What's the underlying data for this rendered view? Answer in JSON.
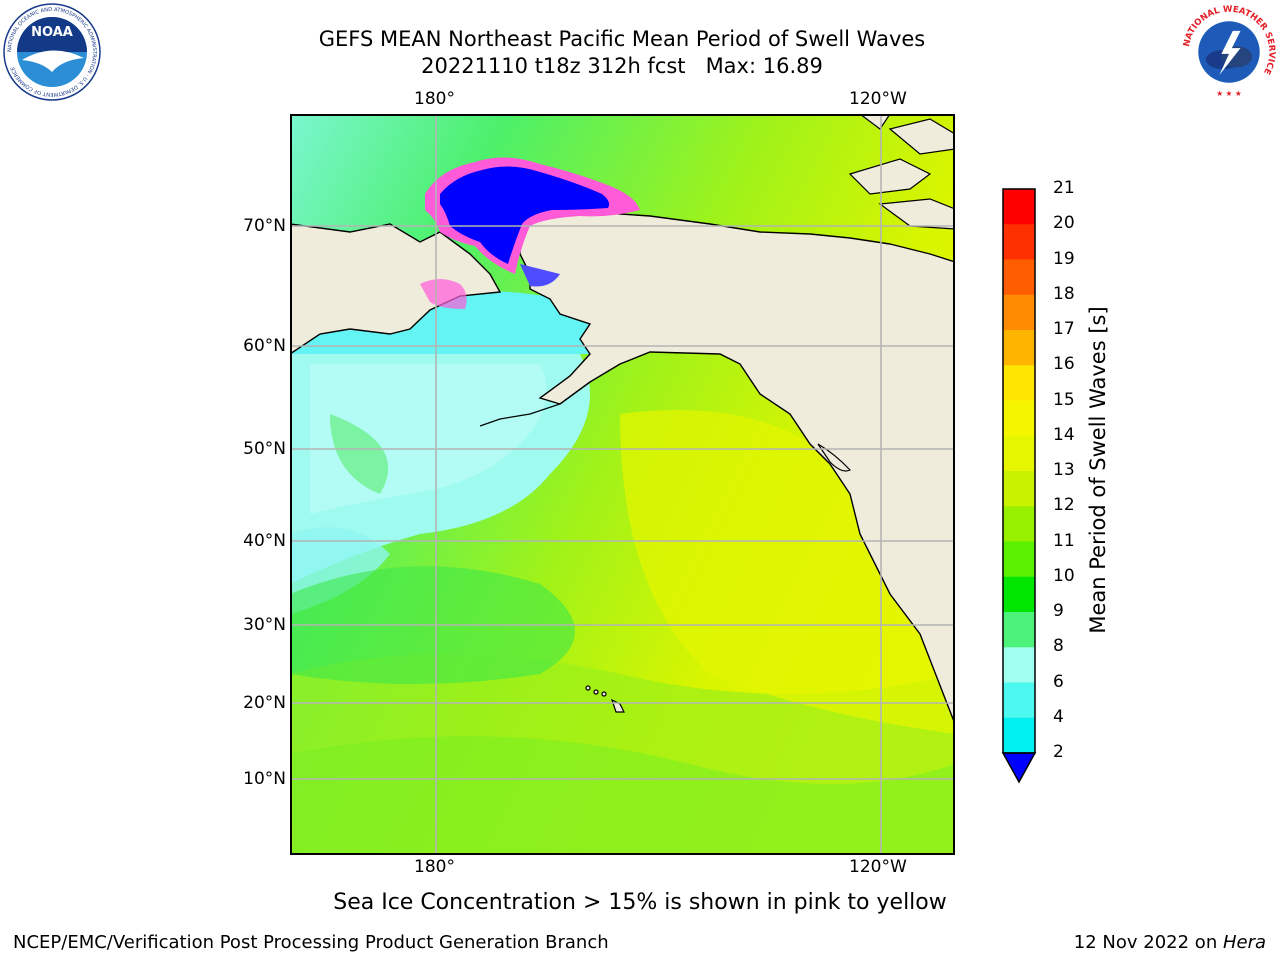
{
  "header": {
    "title_line1": "GEFS MEAN Northeast Pacific Mean Period of Swell Waves",
    "title_line2": "20221110 t18z 312h fcst   Max: 16.89"
  },
  "logos": {
    "noaa_text": "NOAA",
    "noaa_ring": "NATIONAL OCEANIC AND ATMOSPHERIC ADMINISTRATION · U.S. DEPARTMENT OF COMMERCE",
    "nws_ring": "NATIONAL WEATHER SERVICE"
  },
  "map": {
    "lon_labels": [
      "180°",
      "120°W"
    ],
    "lat_labels": [
      "70°N",
      "60°N",
      "50°N",
      "40°N",
      "30°N",
      "20°N",
      "10°N"
    ],
    "colors": {
      "land": "#efecdc",
      "ocean_warm": "#e0f500",
      "ocean_mid": "#58f21c",
      "ocean_cool": "#a0f8f0",
      "ice": "#0000ff",
      "ice_edge": "#ff5ad8",
      "grid": "#b4b4b4"
    }
  },
  "colorbar": {
    "label": "Mean Period of Swell Waves [s]",
    "ticks": [
      "21",
      "20",
      "19",
      "18",
      "17",
      "16",
      "15",
      "14",
      "13",
      "12",
      "11",
      "10",
      "9",
      "8",
      "6",
      "4",
      "2"
    ],
    "colors": [
      "#ff0000",
      "#ff3000",
      "#ff5e00",
      "#ff8c00",
      "#ffb400",
      "#ffe600",
      "#f5f500",
      "#e6f500",
      "#c8f200",
      "#96f000",
      "#5af000",
      "#00e600",
      "#4cf27a",
      "#a0fff0",
      "#4cf8f0",
      "#00f0f0",
      "#00d2f5",
      "#0078ff"
    ],
    "extend_color": "#0000ff"
  },
  "note": "Sea Ice Concentration > 15% is shown in pink to yellow",
  "footer": {
    "left": "NCEP/EMC/Verification Post Processing Product Generation Branch",
    "right_date": "12 Nov 2022 on ",
    "right_machine": "Hera"
  }
}
